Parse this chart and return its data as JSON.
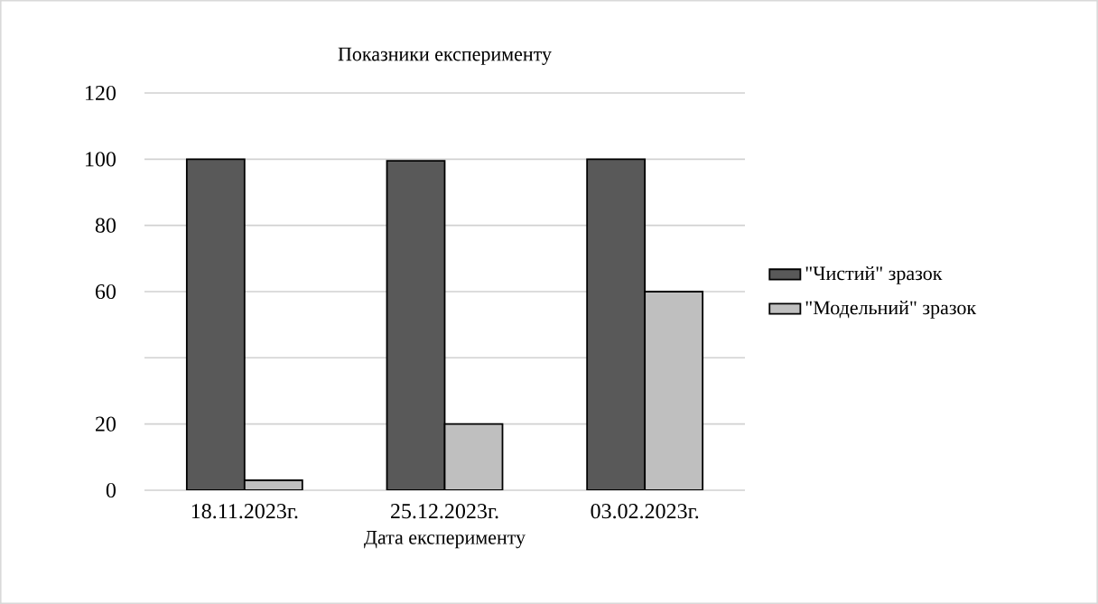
{
  "chart_data": {
    "type": "bar",
    "title": "Показники експерименту",
    "xlabel": "Дата експерименту",
    "categories": [
      "18.11.2023г.",
      "25.12.2023г.",
      "03.02.2023г."
    ],
    "series": [
      {
        "name": "\"Чистий\" зразок",
        "color": "#595959",
        "values": [
          100,
          99.5,
          100
        ]
      },
      {
        "name": "\"Модельний\" зразок",
        "color": "#bfbfbf",
        "values": [
          3,
          20,
          60
        ]
      }
    ],
    "ylim": [
      0,
      120
    ],
    "yticks": [
      0,
      20,
      {
        "value": 40,
        "label": null
      },
      60,
      80,
      100,
      120
    ],
    "grid": "y",
    "legend": "right"
  }
}
